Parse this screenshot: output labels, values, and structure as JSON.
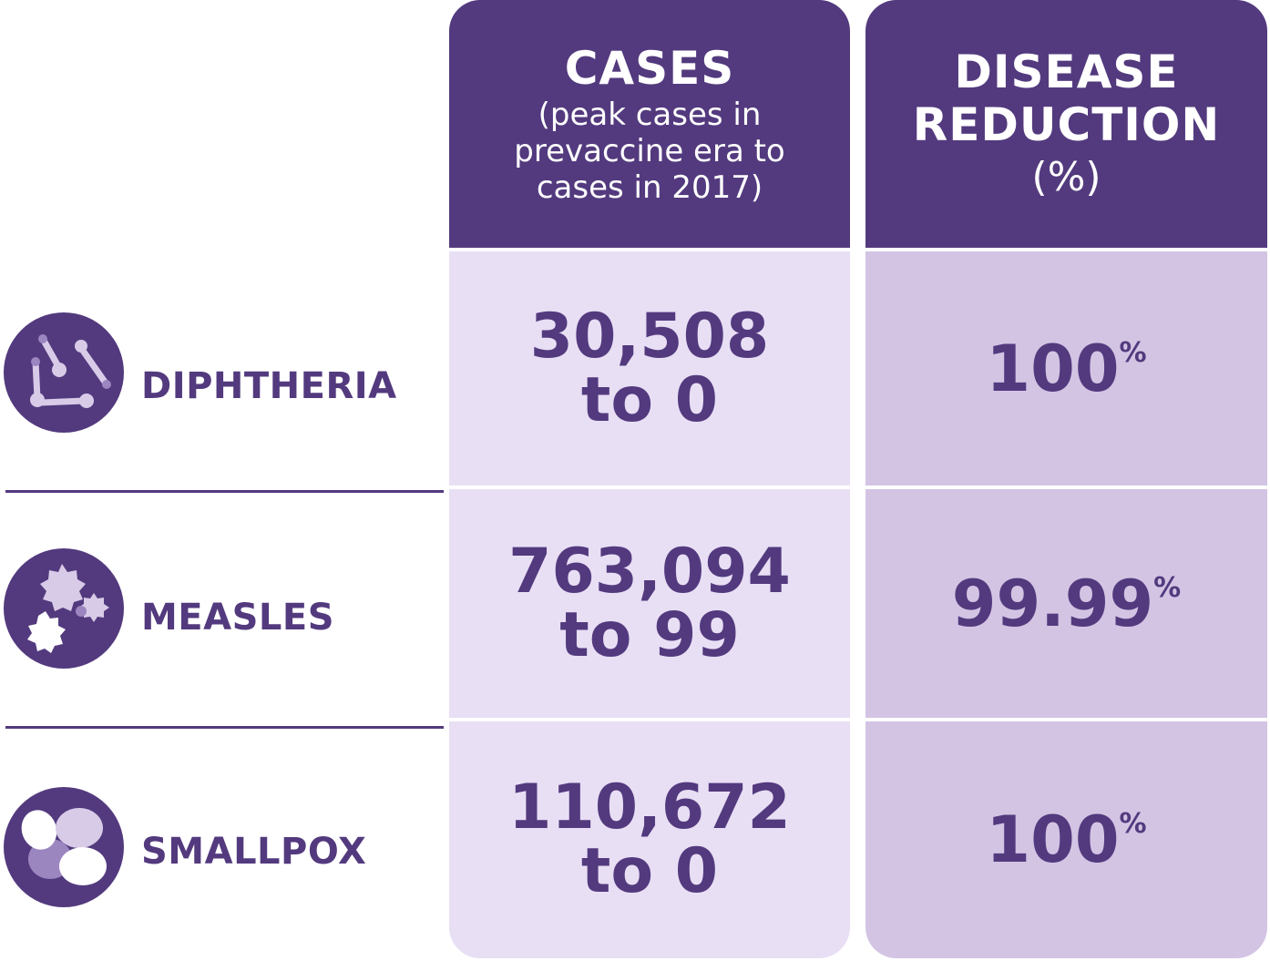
{
  "chart_data": {
    "type": "table",
    "columns": [
      {
        "title": "CASES",
        "subtitle": "(peak cases in prevaccine era to cases in 2017)"
      },
      {
        "title": "DISEASE REDUCTION",
        "subtitle": "(%)"
      }
    ],
    "rows": [
      {
        "disease": "DIPHTHERIA",
        "icon": "diphtheria-bacteria-icon",
        "peak_cases": "30,508",
        "to_label": "to 0",
        "cases_2017": 0,
        "reduction_value": "100",
        "reduction_unit": "%"
      },
      {
        "disease": "MEASLES",
        "icon": "measles-virus-icon",
        "peak_cases": "763,094",
        "to_label": "to 99",
        "cases_2017": 99,
        "reduction_value": "99.99",
        "reduction_unit": "%"
      },
      {
        "disease": "SMALLPOX",
        "icon": "smallpox-virus-icon",
        "peak_cases": "110,672",
        "to_label": "to 0",
        "cases_2017": 0,
        "reduction_value": "100",
        "reduction_unit": "%"
      }
    ]
  },
  "colors": {
    "primary": "#533a7e",
    "cases_cell": "#e8dff5",
    "reduction_cell": "#d3c4e4",
    "icon_light": "#d8cbe8",
    "icon_mid": "#9c86c0"
  }
}
